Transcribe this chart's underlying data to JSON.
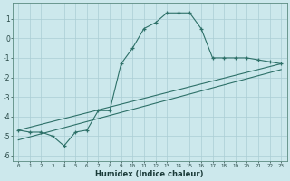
{
  "title": "",
  "xlabel": "Humidex (Indice chaleur)",
  "ylabel": "",
  "bg_color": "#cce8ec",
  "grid_color": "#aacdd4",
  "line_color": "#2d7068",
  "xlim": [
    -0.5,
    23.5
  ],
  "ylim": [
    -6.3,
    1.8
  ],
  "yticks": [
    1,
    0,
    -1,
    -2,
    -3,
    -4,
    -5,
    -6
  ],
  "xticks": [
    0,
    1,
    2,
    3,
    4,
    5,
    6,
    7,
    8,
    9,
    10,
    11,
    12,
    13,
    14,
    15,
    16,
    17,
    18,
    19,
    20,
    21,
    22,
    23
  ],
  "line1_x": [
    0,
    1,
    2,
    3,
    4,
    5,
    6,
    7,
    8,
    9,
    10,
    11,
    12,
    13,
    14,
    15,
    16,
    17,
    18,
    19,
    20,
    21,
    22,
    23
  ],
  "line1_y": [
    -4.7,
    -4.8,
    -4.8,
    -5.0,
    -5.5,
    -4.8,
    -4.7,
    -3.7,
    -3.7,
    -1.3,
    -0.5,
    0.5,
    0.8,
    1.3,
    1.3,
    1.3,
    0.5,
    -1.0,
    -1.0,
    -1.0,
    -1.0,
    -1.1,
    -1.2,
    -1.3
  ],
  "line3_x": [
    0,
    23
  ],
  "line3_y": [
    -4.7,
    -1.3
  ],
  "line4_x": [
    0,
    23
  ],
  "line4_y": [
    -5.2,
    -1.6
  ]
}
